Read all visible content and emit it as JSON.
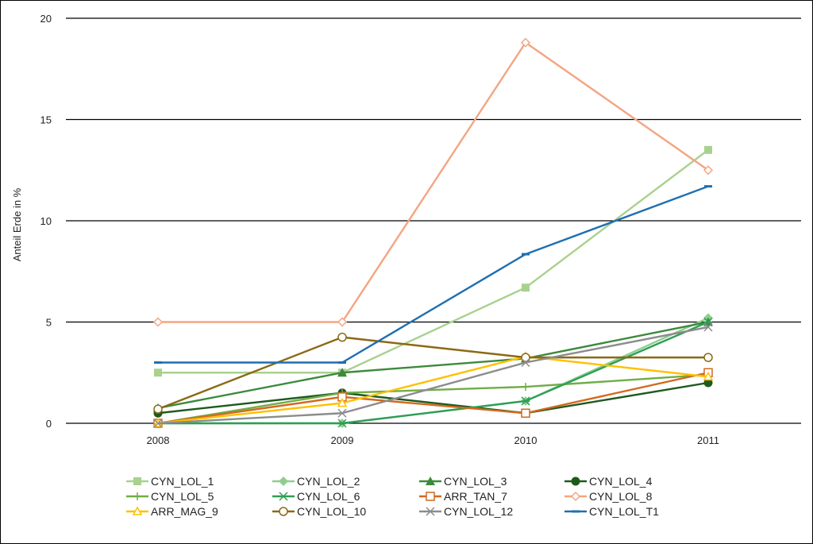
{
  "chart_data": {
    "type": "line",
    "ylabel": "Anteil Erde in %",
    "xlabel": "",
    "categories": [
      "2008",
      "2009",
      "2010",
      "2011"
    ],
    "ylim": [
      0,
      20
    ],
    "yticks": [
      0,
      5,
      10,
      15,
      20
    ],
    "grid": "horizontal",
    "legend_position": "bottom",
    "series": [
      {
        "name": "CYN_LOL_1",
        "values": [
          2.5,
          2.5,
          6.7,
          13.5
        ],
        "color": "#a9d18e",
        "marker": "square"
      },
      {
        "name": "CYN_LOL_2",
        "values": [
          0,
          0,
          1.1,
          5.2
        ],
        "color": "#8fce8f",
        "marker": "diamond"
      },
      {
        "name": "CYN_LOL_3",
        "values": [
          0.75,
          2.5,
          3.2,
          5.0
        ],
        "color": "#3c8a3c",
        "marker": "triangle"
      },
      {
        "name": "CYN_LOL_4",
        "values": [
          0.5,
          1.5,
          0.5,
          2.0
        ],
        "color": "#1e5a1e",
        "marker": "circle"
      },
      {
        "name": "CYN_LOL_5",
        "values": [
          0,
          1.5,
          1.8,
          2.4
        ],
        "color": "#70ad47",
        "marker": "plus"
      },
      {
        "name": "CYN_LOL_6",
        "values": [
          0,
          0,
          1.1,
          5.0
        ],
        "color": "#2e9e55",
        "marker": "star"
      },
      {
        "name": "ARR_TAN_7",
        "values": [
          0,
          1.3,
          0.5,
          2.5
        ],
        "color": "#d2691e",
        "marker": "open-square"
      },
      {
        "name": "CYN_LOL_8",
        "values": [
          5,
          5,
          18.8,
          12.5
        ],
        "color": "#f4a582",
        "marker": "open-diamond"
      },
      {
        "name": "ARR_MAG_9",
        "values": [
          0,
          1.0,
          3.3,
          2.3
        ],
        "color": "#ffc000",
        "marker": "open-triangle"
      },
      {
        "name": "CYN_LOL_10",
        "values": [
          0.7,
          4.25,
          3.25,
          3.25
        ],
        "color": "#8b6914",
        "marker": "open-circle"
      },
      {
        "name": "CYN_LOL_12",
        "values": [
          0,
          0.5,
          3.0,
          4.75
        ],
        "color": "#8c8c8c",
        "marker": "x"
      },
      {
        "name": "CYN_LOL_T1",
        "values": [
          3,
          3,
          8.35,
          11.7
        ],
        "color": "#1f6fb0",
        "marker": "dash"
      }
    ]
  }
}
